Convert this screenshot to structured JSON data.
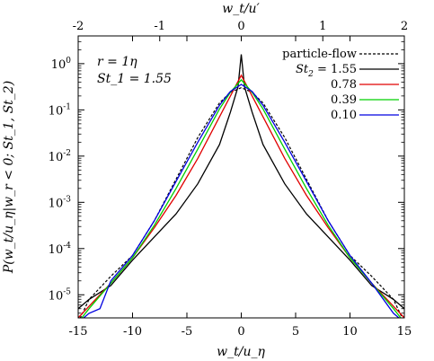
{
  "chart_data": {
    "type": "line",
    "xlabel": "w_t/u_η",
    "x2label": "w_t/u′",
    "ylabel": "P(w_t/u_η|w_r < 0; St_1, St_2)",
    "xlim": [
      -15,
      15
    ],
    "ylim_log10": [
      -5.5,
      0.6
    ],
    "log_y": true,
    "grid": false,
    "legend_position": "top-right",
    "x_ticks": [
      "-15",
      "-10",
      "-5",
      "0",
      "5",
      "10",
      "15"
    ],
    "x2_ticks": [
      "-2",
      "-1",
      "0",
      "1",
      "2"
    ],
    "y_ticks": [
      "10^0",
      "10^-1",
      "10^-2",
      "10^-3",
      "10^-4",
      "10^-5"
    ],
    "annotations": [
      "r = 1η",
      "St_1 = 1.55"
    ],
    "series": [
      {
        "name": "particle-flow",
        "color": "#000000",
        "dashed": true,
        "x": [
          -15,
          -14,
          -12,
          -10,
          -8,
          -6,
          -4,
          -2,
          -1,
          0,
          1,
          2,
          4,
          6,
          8,
          10,
          12,
          14,
          15
        ],
        "y": [
          -5.6,
          -5.1,
          -4.6,
          -4.15,
          -3.4,
          -2.5,
          -1.6,
          -0.85,
          -0.62,
          -0.52,
          -0.62,
          -0.85,
          -1.6,
          -2.5,
          -3.4,
          -4.15,
          -4.6,
          -5.1,
          -5.6
        ]
      },
      {
        "name": "St_2 = 1.55",
        "color": "#000000",
        "dashed": false,
        "x": [
          -15,
          -14,
          -12,
          -10,
          -8,
          -6,
          -4,
          -2,
          -1,
          -0.3,
          0,
          0.3,
          1,
          2,
          4,
          6,
          8,
          10,
          12,
          14,
          15
        ],
        "y": [
          -5.3,
          -5.1,
          -4.8,
          -4.25,
          -3.75,
          -3.25,
          -2.6,
          -1.75,
          -1.05,
          -0.5,
          0.2,
          -0.5,
          -1.05,
          -1.75,
          -2.6,
          -3.25,
          -3.75,
          -4.25,
          -4.8,
          -5.1,
          -5.3
        ]
      },
      {
        "name": "0.78",
        "color": "#e00000",
        "dashed": false,
        "x": [
          -15,
          -14,
          -12,
          -10,
          -8,
          -6,
          -4,
          -2,
          -1,
          0,
          1,
          2,
          4,
          6,
          8,
          10,
          12,
          14,
          15
        ],
        "y": [
          -5.5,
          -5.25,
          -4.75,
          -4.2,
          -3.55,
          -2.85,
          -2.05,
          -1.15,
          -0.7,
          -0.25,
          -0.7,
          -1.15,
          -2.05,
          -2.85,
          -3.55,
          -4.2,
          -4.75,
          -5.25,
          -5.5
        ]
      },
      {
        "name": "0.39",
        "color": "#00d000",
        "dashed": false,
        "x": [
          -15,
          -14,
          -12,
          -10,
          -8,
          -6,
          -4,
          -2,
          -1,
          0,
          1,
          2,
          4,
          6,
          8,
          10,
          12,
          14,
          15
        ],
        "y": [
          -5.6,
          -5.3,
          -4.75,
          -4.2,
          -3.5,
          -2.7,
          -1.85,
          -0.98,
          -0.62,
          -0.35,
          -0.62,
          -0.98,
          -1.85,
          -2.7,
          -3.5,
          -4.2,
          -4.75,
          -5.3,
          -5.6
        ]
      },
      {
        "name": "0.10",
        "color": "#0000e0",
        "dashed": false,
        "x": [
          -15,
          -14,
          -13,
          -12,
          -10,
          -8,
          -6,
          -4,
          -2,
          -1,
          0,
          1,
          2,
          4,
          6,
          8,
          10,
          12,
          14,
          15
        ],
        "y": [
          -5.6,
          -5.4,
          -5.3,
          -4.7,
          -4.15,
          -3.4,
          -2.55,
          -1.7,
          -0.9,
          -0.6,
          -0.45,
          -0.6,
          -0.9,
          -1.7,
          -2.55,
          -3.4,
          -4.15,
          -4.75,
          -5.4,
          -5.6
        ]
      }
    ]
  }
}
